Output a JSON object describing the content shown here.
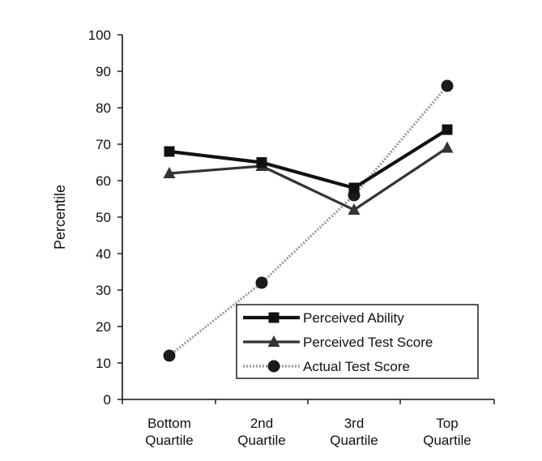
{
  "chart_data": {
    "type": "line",
    "title": "",
    "xlabel": "",
    "ylabel": "Percentile",
    "ylim": [
      0,
      100
    ],
    "yticks": [
      0,
      10,
      20,
      30,
      40,
      50,
      60,
      70,
      80,
      90,
      100
    ],
    "categories": [
      [
        "Bottom",
        "Quartile"
      ],
      [
        "2nd",
        "Quartile"
      ],
      [
        "3rd",
        "Quartile"
      ],
      [
        "Top",
        "Quartile"
      ]
    ],
    "grid": false,
    "legend_position": "bottom-right",
    "series": [
      {
        "name": "Perceived Ability",
        "values": [
          68,
          65,
          58,
          74
        ],
        "marker": "square",
        "color": "#111111",
        "style": "solid-thick"
      },
      {
        "name": "Perceived Test Score",
        "values": [
          62,
          64,
          52,
          69
        ],
        "marker": "triangle",
        "color": "#333333",
        "style": "solid"
      },
      {
        "name": "Actual Test Score",
        "values": [
          12,
          32,
          56,
          86
        ],
        "marker": "circle",
        "color": "#9a9a9a",
        "style": "dotted-gray"
      }
    ]
  }
}
